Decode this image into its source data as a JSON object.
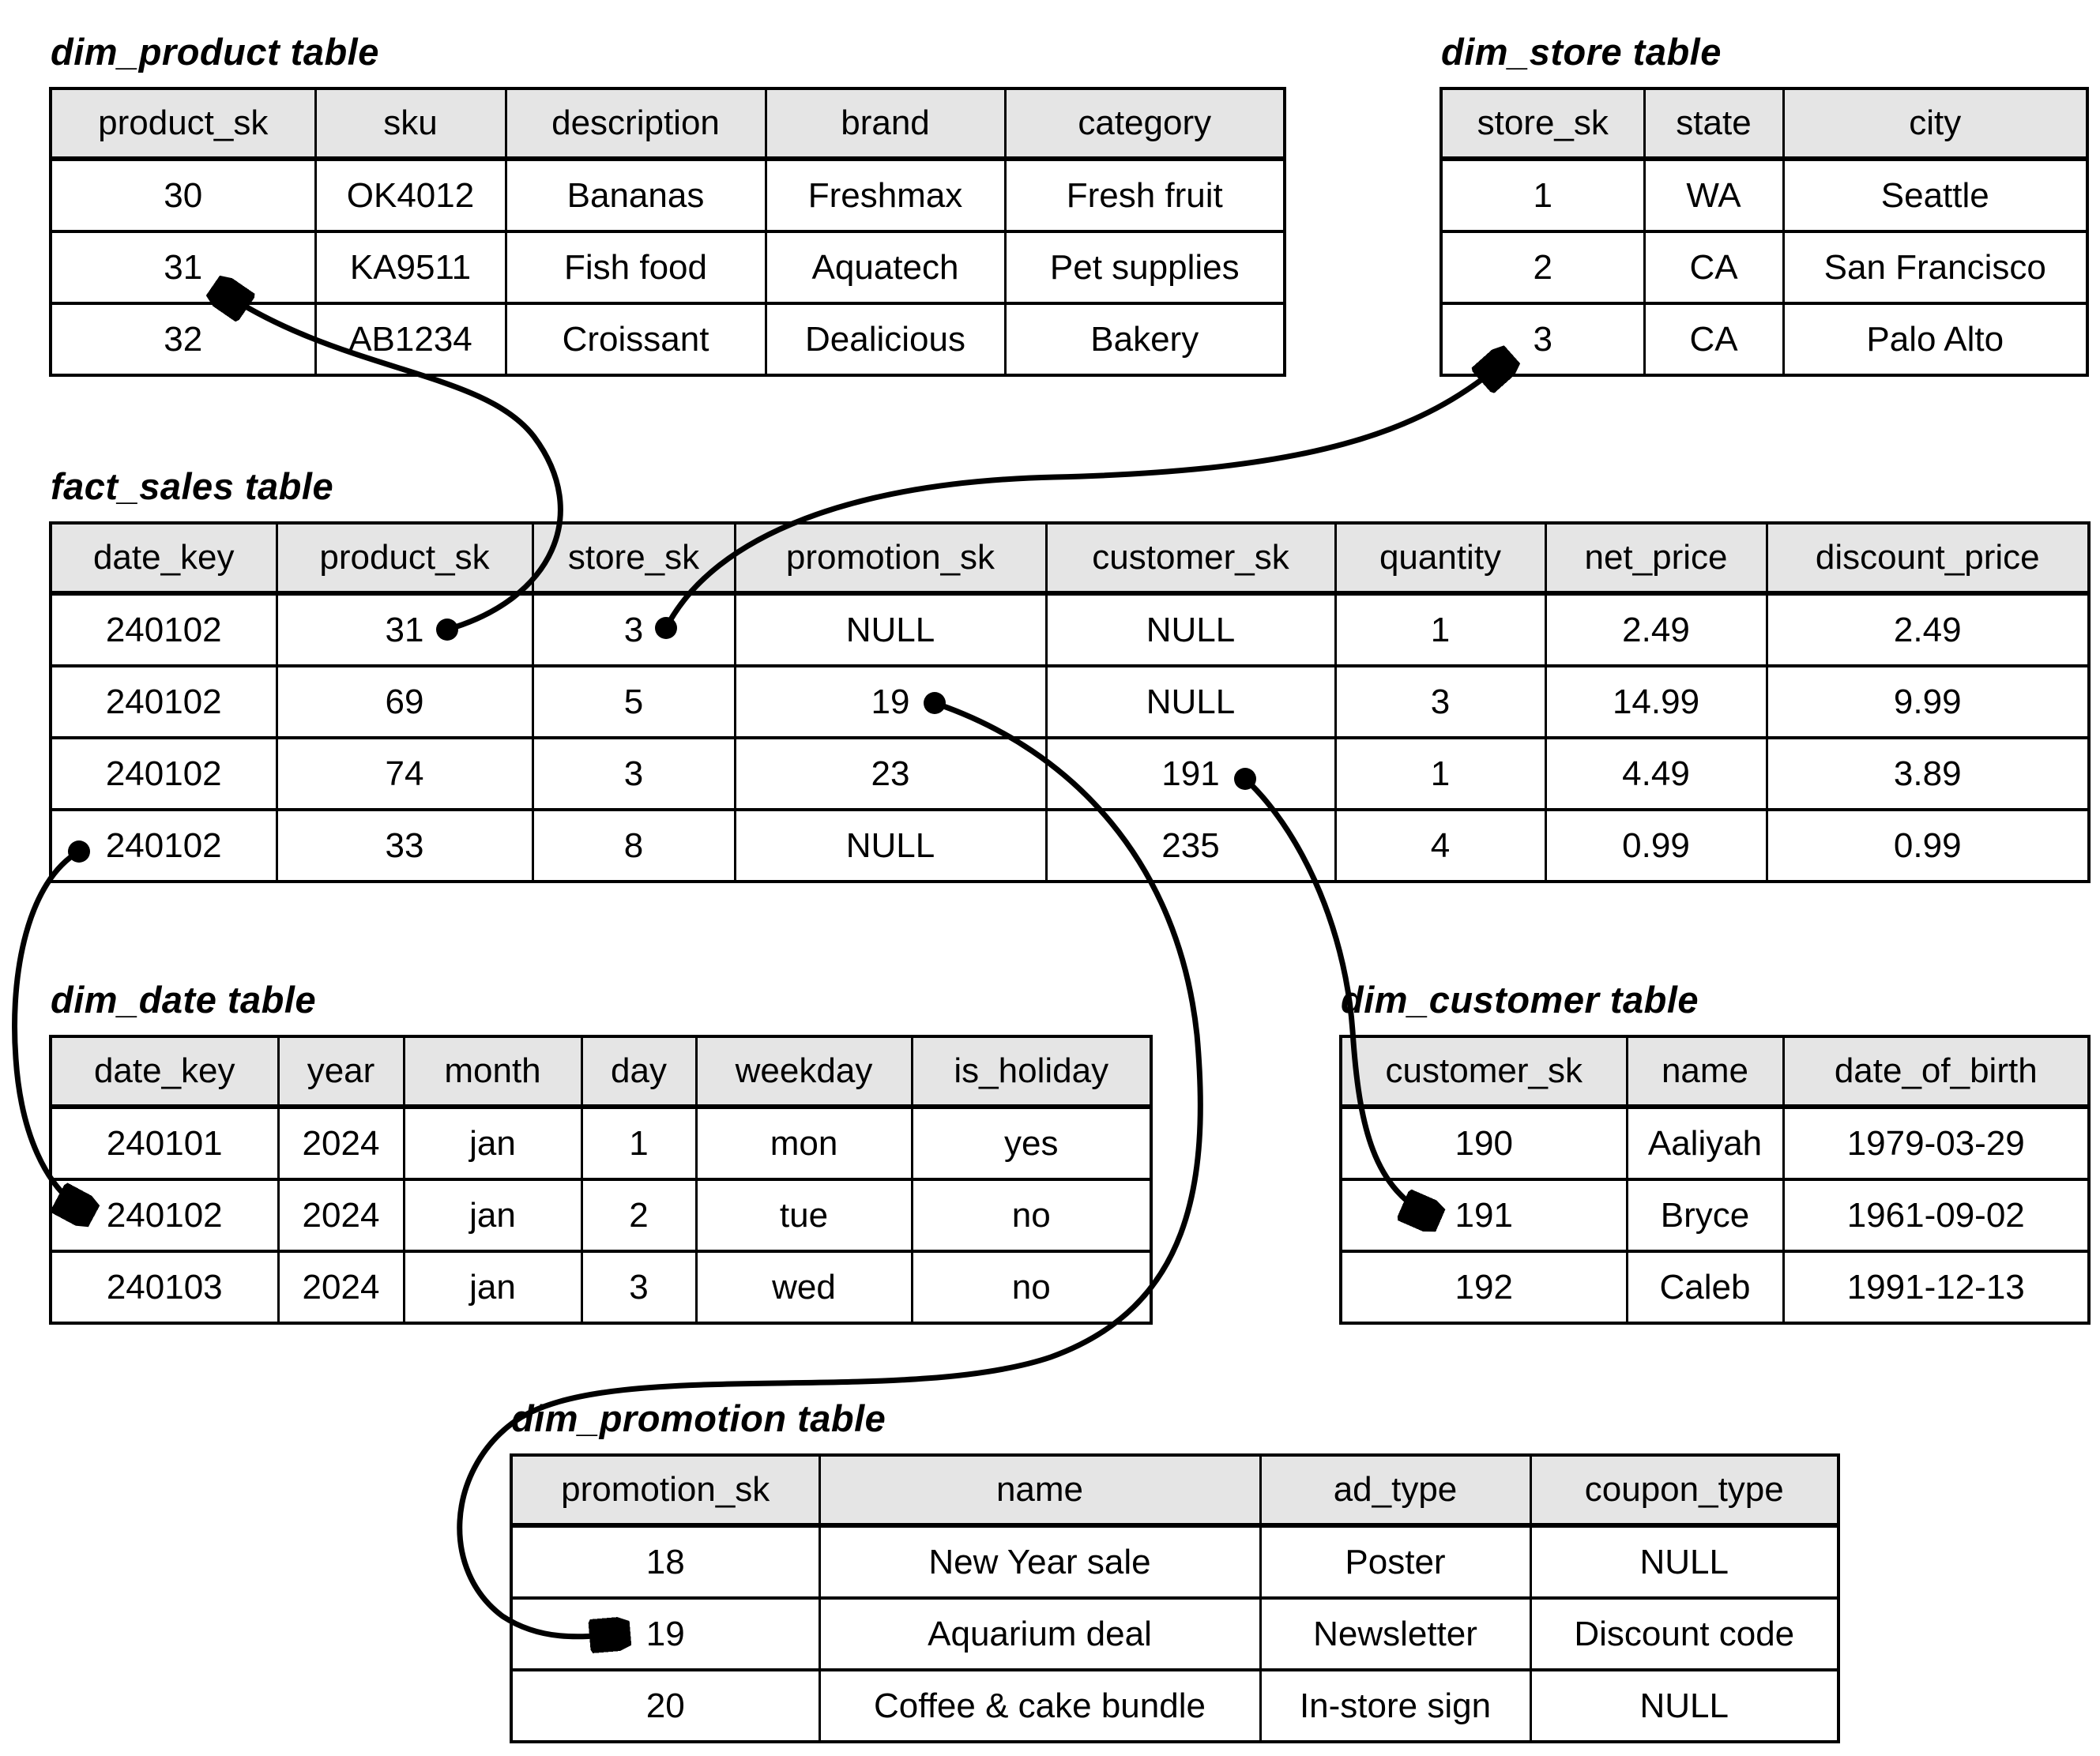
{
  "diagram": {
    "colors": {
      "background": "#ffffff",
      "header_bg": "#e5e5e5",
      "border": "#000000",
      "arrow": "#000000"
    },
    "tables": [
      {
        "id": "dim_product",
        "title": "dim_product table",
        "columns": [
          "product_sk",
          "sku",
          "description",
          "brand",
          "category"
        ],
        "rows": [
          [
            "30",
            "OK4012",
            "Bananas",
            "Freshmax",
            "Fresh fruit"
          ],
          [
            "31",
            "KA9511",
            "Fish food",
            "Aquatech",
            "Pet supplies"
          ],
          [
            "32",
            "AB1234",
            "Croissant",
            "Dealicious",
            "Bakery"
          ]
        ]
      },
      {
        "id": "dim_store",
        "title": "dim_store table",
        "columns": [
          "store_sk",
          "state",
          "city"
        ],
        "rows": [
          [
            "1",
            "WA",
            "Seattle"
          ],
          [
            "2",
            "CA",
            "San Francisco"
          ],
          [
            "3",
            "CA",
            "Palo Alto"
          ]
        ]
      },
      {
        "id": "fact_sales",
        "title": "fact_sales table",
        "columns": [
          "date_key",
          "product_sk",
          "store_sk",
          "promotion_sk",
          "customer_sk",
          "quantity",
          "net_price",
          "discount_price"
        ],
        "rows": [
          [
            "240102",
            "31",
            "3",
            "NULL",
            "NULL",
            "1",
            "2.49",
            "2.49"
          ],
          [
            "240102",
            "69",
            "5",
            "19",
            "NULL",
            "3",
            "14.99",
            "9.99"
          ],
          [
            "240102",
            "74",
            "3",
            "23",
            "191",
            "1",
            "4.49",
            "3.89"
          ],
          [
            "240102",
            "33",
            "8",
            "NULL",
            "235",
            "4",
            "0.99",
            "0.99"
          ]
        ]
      },
      {
        "id": "dim_date",
        "title": "dim_date table",
        "columns": [
          "date_key",
          "year",
          "month",
          "day",
          "weekday",
          "is_holiday"
        ],
        "rows": [
          [
            "240101",
            "2024",
            "jan",
            "1",
            "mon",
            "yes"
          ],
          [
            "240102",
            "2024",
            "jan",
            "2",
            "tue",
            "no"
          ],
          [
            "240103",
            "2024",
            "jan",
            "3",
            "wed",
            "no"
          ]
        ]
      },
      {
        "id": "dim_customer",
        "title": "dim_customer table",
        "columns": [
          "customer_sk",
          "name",
          "date_of_birth"
        ],
        "rows": [
          [
            "190",
            "Aaliyah",
            "1979-03-29"
          ],
          [
            "191",
            "Bryce",
            "1961-09-02"
          ],
          [
            "192",
            "Caleb",
            "1991-12-13"
          ]
        ]
      },
      {
        "id": "dim_promotion",
        "title": "dim_promotion table",
        "columns": [
          "promotion_sk",
          "name",
          "ad_type",
          "coupon_type"
        ],
        "rows": [
          [
            "18",
            "New Year sale",
            "Poster",
            "NULL"
          ],
          [
            "19",
            "Aquarium deal",
            "Newsletter",
            "Discount code"
          ],
          [
            "20",
            "Coffee & cake bundle",
            "In-store sign",
            "NULL"
          ]
        ]
      }
    ],
    "relationships": [
      {
        "from": "fact_sales.product_sk = 31",
        "to": "dim_product.product_sk = 31"
      },
      {
        "from": "fact_sales.store_sk = 3",
        "to": "dim_store.store_sk = 3"
      },
      {
        "from": "fact_sales.promotion_sk = 19",
        "to": "dim_promotion.promotion_sk = 19"
      },
      {
        "from": "fact_sales.customer_sk = 191",
        "to": "dim_customer.customer_sk = 191"
      },
      {
        "from": "fact_sales.date_key = 240102",
        "to": "dim_date.date_key = 240102"
      }
    ]
  }
}
